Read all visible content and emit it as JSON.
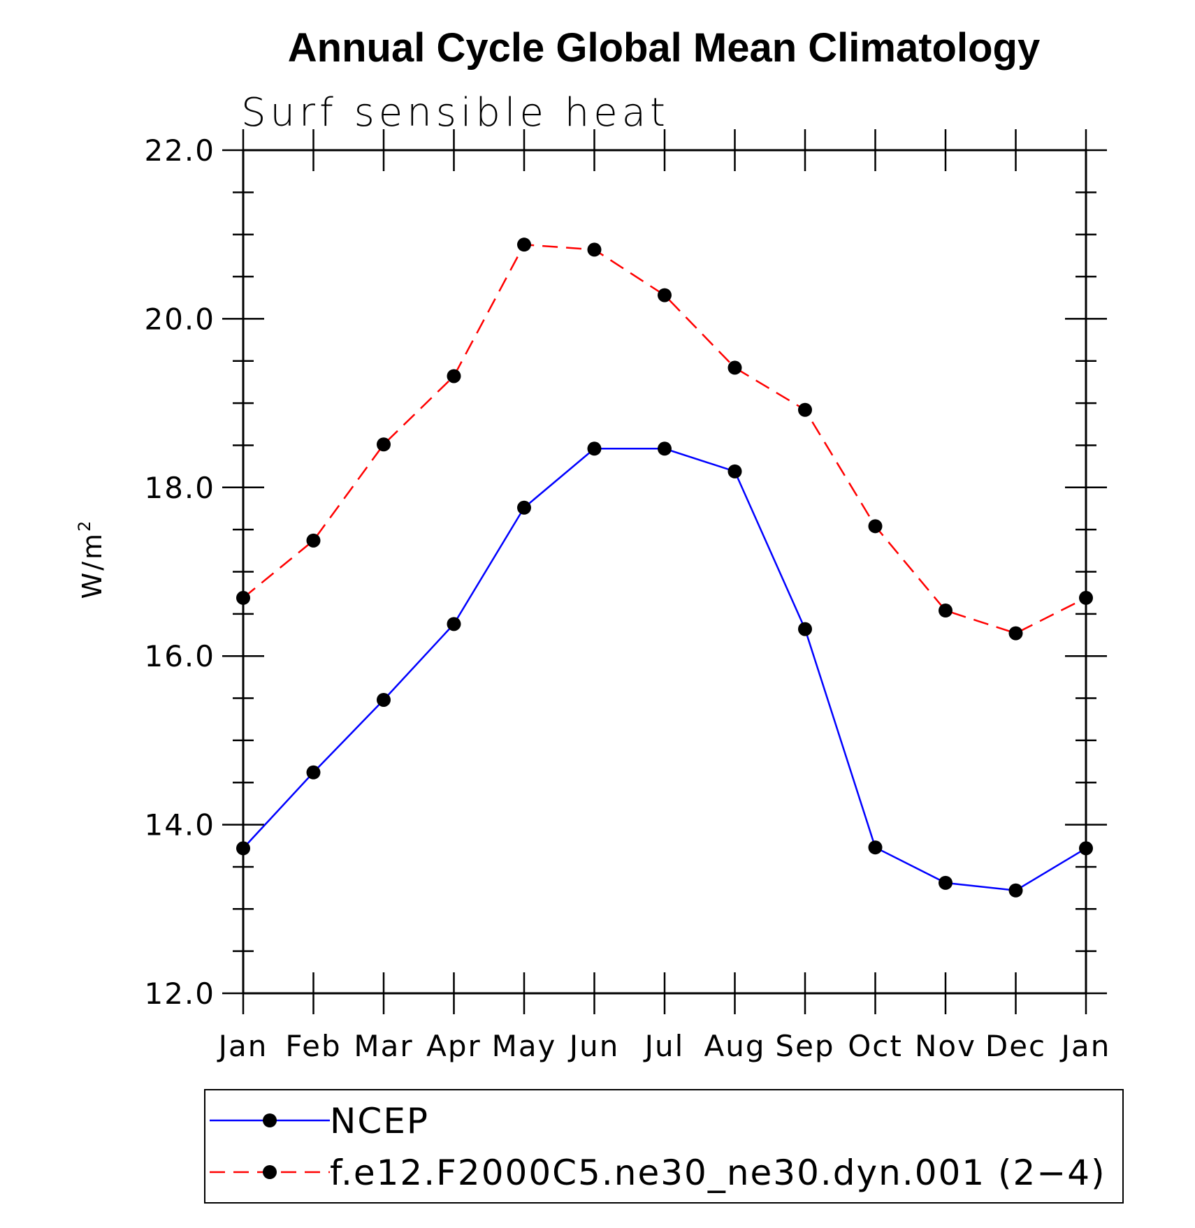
{
  "chart_data": {
    "type": "line",
    "title": "Annual Cycle Global Mean Climatology",
    "subtitle": "Surf sensible heat",
    "ylabel": "W/m",
    "ylabel_superscript": "2",
    "xlabel": "",
    "categories": [
      "Jan",
      "Feb",
      "Mar",
      "Apr",
      "May",
      "Jun",
      "Jul",
      "Aug",
      "Sep",
      "Oct",
      "Nov",
      "Dec",
      "Jan"
    ],
    "ylim": [
      12.0,
      22.0
    ],
    "yticks": [
      "12.0",
      "14.0",
      "16.0",
      "18.0",
      "20.0",
      "22.0"
    ],
    "y_minor_step": 0.5,
    "grid": false,
    "legend_position": "bottom",
    "series": [
      {
        "name": "NCEP",
        "color": "#0000ff",
        "line_style": "solid",
        "marker": "filled-circle",
        "values": [
          13.72,
          14.62,
          15.48,
          16.38,
          17.76,
          18.46,
          18.46,
          18.19,
          16.32,
          13.73,
          13.31,
          13.22,
          13.72
        ]
      },
      {
        "name": "f.e12.F2000C5.ne30_ne30.dyn.001 (2−4)",
        "color": "#ff0000",
        "line_style": "dashed",
        "marker": "filled-circle",
        "values": [
          16.69,
          17.37,
          18.51,
          19.32,
          20.88,
          20.82,
          20.28,
          19.42,
          18.92,
          17.54,
          16.54,
          16.27,
          16.69
        ]
      }
    ]
  }
}
